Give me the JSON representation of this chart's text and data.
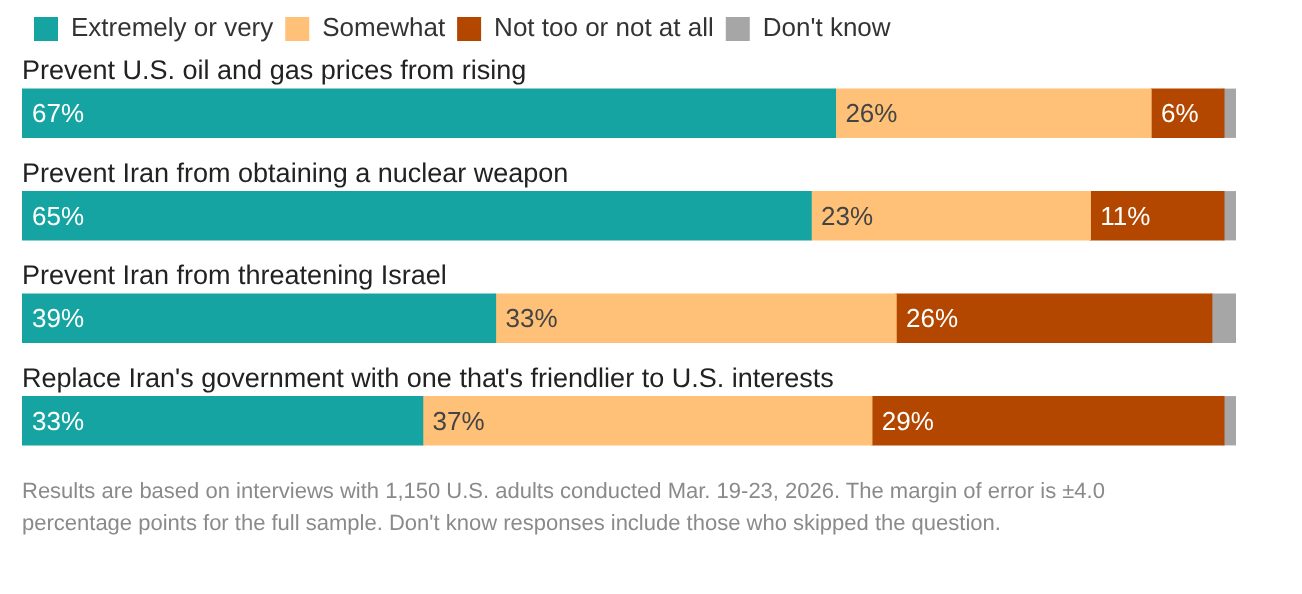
{
  "chart_data": {
    "type": "bar",
    "orientation": "horizontal",
    "stacked": true,
    "categories": [
      "Prevent U.S. oil and gas prices from rising",
      "Prevent Iran from obtaining a nuclear weapon",
      "Prevent Iran from threatening Israel",
      "Replace Iran's government with one that's friendlier to U.S. interests"
    ],
    "series": [
      {
        "name": "Extremely or very",
        "color": "#16a4a2",
        "values": [
          67,
          65,
          39,
          33
        ],
        "value_labels": [
          "67%",
          "65%",
          "39%",
          "33%"
        ]
      },
      {
        "name": "Somewhat",
        "color": "#ffc177",
        "values": [
          26,
          23,
          33,
          37
        ],
        "value_labels": [
          "26%",
          "23%",
          "33%",
          "37%"
        ]
      },
      {
        "name": "Not too or not at all",
        "color": "#b34700",
        "values": [
          6,
          11,
          26,
          29
        ],
        "value_labels": [
          "6%",
          "11%",
          "26%",
          "29%"
        ]
      },
      {
        "name": "Don't know",
        "color": "#a6a6a6",
        "values": [
          1,
          1,
          2,
          1
        ],
        "value_labels": [
          null,
          null,
          null,
          null
        ]
      }
    ],
    "xlim": [
      0,
      100
    ],
    "tick_labels": false,
    "legend": "top left",
    "annotations": [
      "Results are based on interviews with 1,150 U.S. adults conducted Mar. 19-23, 2026. The margin of error is ±4.0 percentage points for the full sample. Don't know responses include those who skipped the question."
    ]
  }
}
